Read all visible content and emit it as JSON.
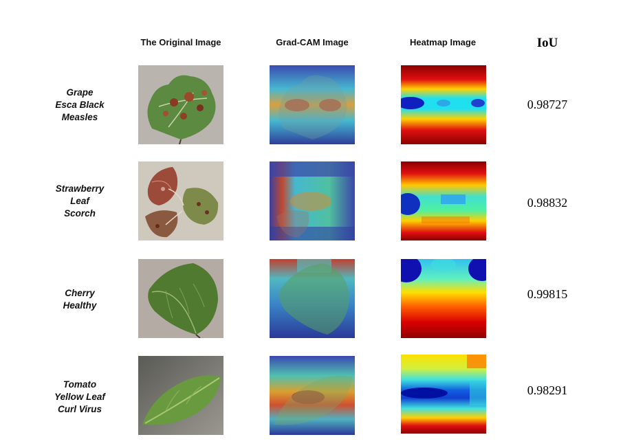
{
  "headers": {
    "original": "The Original Image",
    "gradcam": "Grad-CAM Image",
    "heatmap": "Heatmap Image",
    "iou": "IoU"
  },
  "rows": [
    {
      "label": [
        "Grape",
        "Esca Black",
        "Measles"
      ],
      "iou": "0.98727"
    },
    {
      "label": [
        "Strawberry",
        "Leaf",
        "Scorch"
      ],
      "iou": "0.98832"
    },
    {
      "label": [
        "Cherry",
        "Healthy"
      ],
      "iou": "0.99815"
    },
    {
      "label": [
        "Tomato",
        "Yellow Leaf",
        "Curl Virus"
      ],
      "iou": "0.98291"
    }
  ]
}
